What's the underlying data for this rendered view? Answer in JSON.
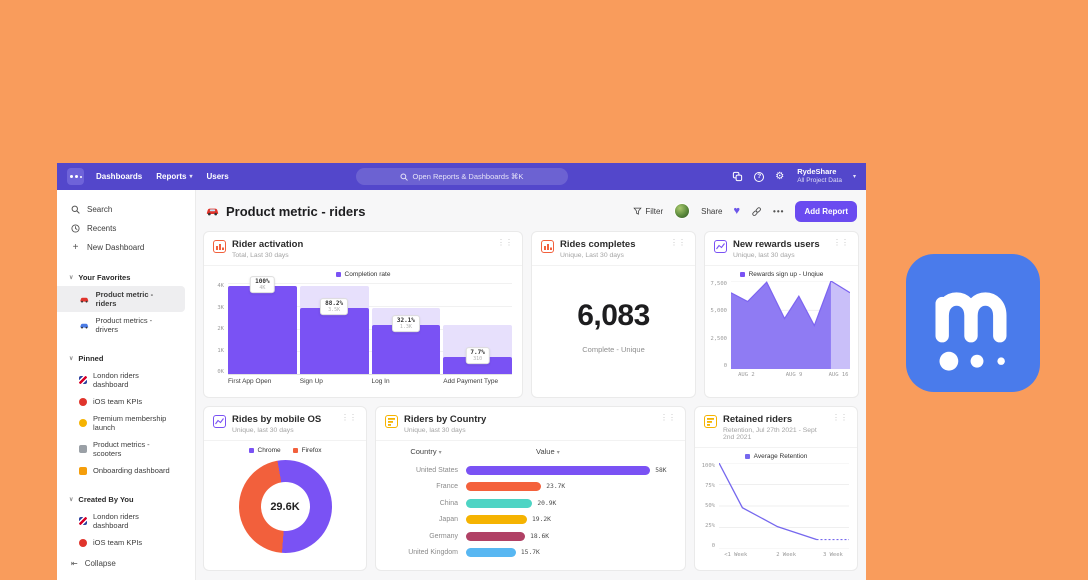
{
  "colors": {
    "page_background": "#F99C5C",
    "nav_purple": "#5347CB",
    "accent_purple": "#6A4BF0",
    "funnel_dark": "#7A52F4",
    "funnel_light": "#E7E0FC",
    "area_fill": "#8F7BF3",
    "area_fill_light": "#C9BFF9",
    "logo_blue": "#4A7BEB"
  },
  "nav": {
    "links": [
      {
        "label": "Dashboards"
      },
      {
        "label": "Reports",
        "chevron": "▾"
      },
      {
        "label": "Users"
      }
    ],
    "search_text": "Open Reports &  Dashboards ⌘K",
    "workspace_name": "RydeShare",
    "workspace_subtitle": "All Project Data",
    "workspace_chevron": "▾"
  },
  "sidebar": {
    "top_items": [
      {
        "label": "Search",
        "icon": "search-icon"
      },
      {
        "label": "Recents",
        "icon": "clock-icon"
      },
      {
        "label": "New Dashboard",
        "icon": "plus-icon"
      }
    ],
    "sections": [
      {
        "title": "Your Favorites",
        "items": [
          {
            "label": "Product metric - riders",
            "icon": "red-car-icon",
            "shape": "car",
            "color": "#E0342C",
            "selected": true
          },
          {
            "label": "Product metrics - drivers",
            "icon": "blue-car-icon",
            "shape": "car",
            "color": "#4B7BE5",
            "selected": false
          }
        ]
      },
      {
        "title": "Pinned",
        "items": [
          {
            "label": "London riders dashboard",
            "icon": "uk-flag-icon",
            "shape": "flag",
            "color": "",
            "selected": false
          },
          {
            "label": "iOS team KPIs",
            "icon": "apple-icon",
            "shape": "circle",
            "color": "#E0342C",
            "selected": false
          },
          {
            "label": "Premium membership launch",
            "icon": "coin-icon",
            "shape": "circle",
            "color": "#F5B301",
            "selected": false
          },
          {
            "label": "Product metrics - scooters",
            "icon": "scooter-icon",
            "shape": "square",
            "color": "#9AA0A6",
            "selected": false
          },
          {
            "label": "Onboarding dashboard",
            "icon": "party-icon",
            "shape": "square",
            "color": "#F59E0B",
            "selected": false
          }
        ]
      },
      {
        "title": "Created By You",
        "items": [
          {
            "label": "London riders dashboard",
            "icon": "uk-flag-icon",
            "shape": "flag",
            "color": "",
            "selected": false
          },
          {
            "label": "iOS team KPIs",
            "icon": "apple-icon",
            "shape": "circle",
            "color": "#E0342C",
            "selected": false
          }
        ]
      }
    ],
    "collapse_label": "Collapse"
  },
  "header": {
    "title": "Product metric - riders",
    "filter_label": "Filter",
    "share_label": "Share",
    "more_label": "•••",
    "add_report_label": "Add Report"
  },
  "cards": {
    "rider_activation": {
      "title": "Rider activation",
      "subtitle": "Total, Last 30 days",
      "icon_color": "#F2603C",
      "legend": "Completion rate",
      "y_ticks": [
        "4K",
        "3K",
        "2K",
        "1K",
        "0K"
      ],
      "steps": [
        {
          "label": "First App Open",
          "pct": "100%",
          "sub": "4K",
          "dark": 0.97,
          "light": 0.97
        },
        {
          "label": "Sign Up",
          "pct": "88.2%",
          "sub": "3.5K",
          "dark": 0.72,
          "light": 0.97
        },
        {
          "label": "Log In",
          "pct": "32.1%",
          "sub": "1.3K",
          "dark": 0.54,
          "light": 0.72
        },
        {
          "label": "Add Payment Type",
          "pct": "7.7%",
          "sub": "310",
          "dark": 0.19,
          "light": 0.54
        }
      ]
    },
    "rides_completes": {
      "title": "Rides completes",
      "subtitle": "Unique, Last 30 days",
      "icon_color": "#F2603C",
      "value": "6,083",
      "caption": "Complete - Unique"
    },
    "new_rewards": {
      "title": "New rewards users",
      "subtitle": "Unique, last 30 days",
      "icon_color": "#7A52F4",
      "legend": "Rewards sign up - Unqiue",
      "y_ticks": [
        "7,500",
        "5,000",
        "2,500",
        "0"
      ],
      "x_ticks": [
        "AUG 2",
        "AUG 9",
        "AUG 16"
      ],
      "x": [
        0,
        14,
        30,
        45,
        57,
        70,
        84,
        100
      ],
      "values": [
        6500,
        5750,
        7400,
        4300,
        6200,
        3700,
        7500,
        6500
      ],
      "ymax": 7500,
      "solid_until_index": 6
    },
    "rides_by_os": {
      "title": "Rides by mobile OS",
      "subtitle": "Unique, last 30 days",
      "icon_color": "#7A52F4",
      "center_value": "29.6K",
      "slices": [
        {
          "label": "Chrome",
          "color": "#7A52F4",
          "pct": 54
        },
        {
          "label": "Firefox",
          "color": "#F2603C",
          "pct": 46
        }
      ],
      "start_deg": -10
    },
    "riders_by_country": {
      "title": "Riders by Country",
      "subtitle": "Unique, last 30 days",
      "icon_color": "#F5B301",
      "col1": "Country",
      "col2": "Value",
      "sort_chevron": "▾",
      "rows": [
        {
          "label": "United States",
          "value": "58K",
          "num": 58,
          "color": "#7A52F4"
        },
        {
          "label": "France",
          "value": "23.7K",
          "num": 23.7,
          "color": "#F4613C"
        },
        {
          "label": "China",
          "value": "20.9K",
          "num": 20.9,
          "color": "#4ED4C4"
        },
        {
          "label": "Japan",
          "value": "19.2K",
          "num": 19.2,
          "color": "#F5B301"
        },
        {
          "label": "Germany",
          "value": "18.6K",
          "num": 18.6,
          "color": "#B04165"
        },
        {
          "label": "United Kingdom",
          "value": "15.7K",
          "num": 15.7,
          "color": "#58B7F2"
        }
      ]
    },
    "retained_riders": {
      "title": "Retained riders",
      "subtitle": "Retention, Jul 27th 2021 - Sept 2nd 2021",
      "icon_color": "#F5B301",
      "legend": "Average Retention",
      "y_ticks": [
        "100%",
        "75%",
        "50%",
        "25%",
        "0"
      ],
      "x_ticks": [
        "<1 Week",
        "2 Week",
        "3 Week"
      ],
      "points": [
        [
          0,
          100
        ],
        [
          18,
          48
        ],
        [
          45,
          26
        ],
        [
          75,
          11
        ]
      ],
      "dotted_to_x": 100,
      "line_color": "#7668EE"
    }
  },
  "brand_logo": {
    "name": "mixpanel-m-logo"
  }
}
